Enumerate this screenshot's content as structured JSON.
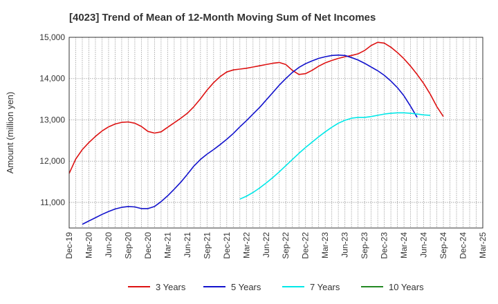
{
  "chart_data": {
    "type": "line",
    "title": "[4023]  Trend of Mean of 12-Month Moving Sum of Net Incomes",
    "ylabel": "Amount (million yen)",
    "xlabel": "",
    "ylim": [
      10380,
      15000
    ],
    "yticks": [
      11000,
      12000,
      13000,
      14000,
      15000
    ],
    "ytick_labels": [
      "11,000",
      "12,000",
      "13,000",
      "14,000",
      "15,000"
    ],
    "x_start": "2019-12",
    "x_end": "2025-03",
    "xtick_labels": [
      "Dec-19",
      "Mar-20",
      "Jun-20",
      "Sep-20",
      "Dec-20",
      "Mar-21",
      "Jun-21",
      "Sep-21",
      "Dec-21",
      "Mar-22",
      "Jun-22",
      "Sep-22",
      "Dec-22",
      "Mar-23",
      "Jun-23",
      "Sep-23",
      "Dec-23",
      "Mar-24",
      "Jun-24",
      "Sep-24",
      "Dec-24",
      "Mar-25"
    ],
    "grid": true,
    "legend_position": "bottom",
    "series": [
      {
        "name": "3 Years",
        "color": "#dd1111",
        "x_start": "2019-12",
        "values": [
          11700,
          12050,
          12280,
          12450,
          12600,
          12730,
          12830,
          12900,
          12940,
          12950,
          12920,
          12840,
          12720,
          12680,
          12710,
          12820,
          12930,
          13040,
          13160,
          13320,
          13510,
          13720,
          13900,
          14050,
          14160,
          14210,
          14230,
          14250,
          14280,
          14310,
          14340,
          14370,
          14390,
          14340,
          14200,
          14100,
          14120,
          14200,
          14300,
          14380,
          14440,
          14490,
          14530,
          14560,
          14600,
          14680,
          14800,
          14880,
          14860,
          14760,
          14630,
          14480,
          14300,
          14100,
          13880,
          13620,
          13320,
          13080
        ]
      },
      {
        "name": "5 Years",
        "color": "#1111cc",
        "x_start": "2020-02",
        "values": [
          10470,
          10550,
          10630,
          10710,
          10780,
          10840,
          10880,
          10900,
          10890,
          10850,
          10850,
          10900,
          11020,
          11160,
          11320,
          11490,
          11680,
          11880,
          12040,
          12170,
          12280,
          12400,
          12530,
          12670,
          12830,
          12980,
          13140,
          13300,
          13480,
          13660,
          13840,
          14000,
          14150,
          14270,
          14360,
          14430,
          14490,
          14530,
          14560,
          14570,
          14560,
          14510,
          14450,
          14370,
          14280,
          14190,
          14080,
          13940,
          13780,
          13580,
          13330,
          13060
        ]
      },
      {
        "name": "7 Years",
        "color": "#00e8e8",
        "x_start": "2022-02",
        "values": [
          11080,
          11150,
          11240,
          11350,
          11470,
          11600,
          11740,
          11890,
          12040,
          12190,
          12330,
          12460,
          12590,
          12710,
          12820,
          12920,
          12990,
          13040,
          13060,
          13060,
          13080,
          13110,
          13140,
          13160,
          13170,
          13170,
          13160,
          13140,
          13120,
          13110
        ]
      },
      {
        "name": "10 Years",
        "color": "#228822",
        "x_start": "2024-12",
        "values": []
      }
    ]
  }
}
